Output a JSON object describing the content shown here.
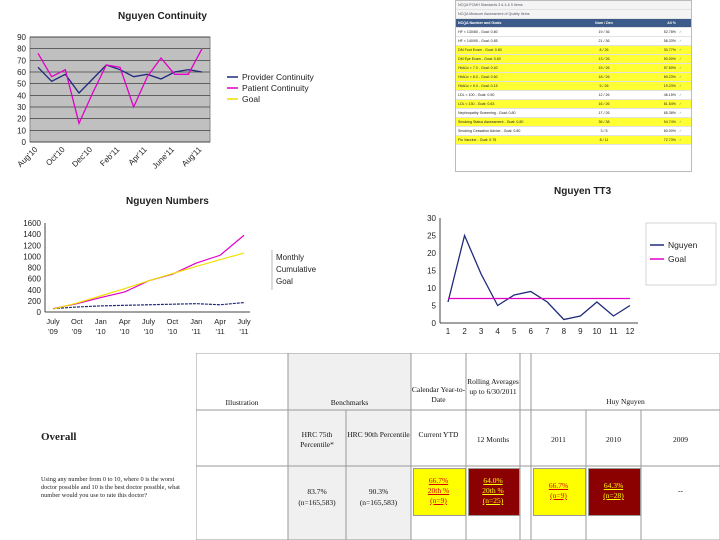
{
  "chart_data": [
    {
      "type": "line",
      "title": "Nguyen Continuity",
      "categories": [
        "Aug '10",
        "Sep '10",
        "Oct '10",
        "Nov '10",
        "Dec '10",
        "Jan '11",
        "Feb '11",
        "Mar '11",
        "Apr '11",
        "May '11",
        "June '11",
        "July '11",
        "Aug '11"
      ],
      "tick_labels": [
        "Aug'10",
        "Oct'10",
        "Dec'10",
        "Feb'11",
        "Apr'11",
        "June'11",
        "Aug'11"
      ],
      "ylim": [
        0,
        90
      ],
      "yticks": [
        0,
        10,
        20,
        30,
        40,
        50,
        60,
        70,
        80,
        90
      ],
      "series": [
        {
          "name": "Provider Continuity",
          "color": "#1f2a7a",
          "values": [
            64,
            52,
            58,
            42,
            54,
            66,
            62,
            56,
            58,
            54,
            60,
            62,
            60
          ]
        },
        {
          "name": "Patient Continuity",
          "color": "#e000c8",
          "values": [
            76,
            56,
            62,
            16,
            42,
            66,
            64,
            30,
            56,
            72,
            58,
            58,
            80
          ]
        },
        {
          "name": "Goal",
          "color": "#f0e000",
          "values": [
            null,
            null,
            null,
            null,
            null,
            null,
            null,
            null,
            null,
            null,
            null,
            null,
            null
          ]
        }
      ],
      "legend": [
        "Provider Continuity",
        "Patient Continuity",
        "Goal"
      ]
    },
    {
      "type": "line",
      "title": "Nguyen Numbers",
      "categories": [
        "July '09",
        "Oct '09",
        "Jan '10",
        "Apr '10",
        "July '10",
        "Oct '10",
        "Jan '11",
        "Apr '11",
        "July '11"
      ],
      "tick_labels_top": [
        "July",
        "Oct",
        "Jan",
        "Apr",
        "July",
        "Oct",
        "Jan",
        "Apr",
        "July"
      ],
      "tick_labels_bottom": [
        "'09",
        "'09",
        "'10",
        "'10",
        "'10",
        "'10",
        "'11",
        "'11",
        "'11"
      ],
      "ylim": [
        0,
        1600
      ],
      "yticks": [
        0,
        200,
        400,
        600,
        800,
        1000,
        1200,
        1400,
        1600
      ],
      "series": [
        {
          "name": "Monthly",
          "color": "#1f2a7a",
          "values": [
            60,
            90,
            110,
            120,
            130,
            140,
            150,
            130,
            170
          ]
        },
        {
          "name": "Cumulative",
          "color": "#e000c8",
          "values": [
            60,
            150,
            260,
            360,
            560,
            680,
            880,
            1020,
            1380
          ]
        },
        {
          "name": "Goal",
          "color": "#f0e000",
          "values": [
            50,
            160,
            290,
            420,
            560,
            690,
            820,
            940,
            1060
          ]
        }
      ],
      "legend": [
        "Monthly",
        "Cumulative",
        "Goal"
      ]
    },
    {
      "type": "line",
      "title": "Nguyen TT3",
      "categories": [
        "1",
        "2",
        "3",
        "4",
        "5",
        "6",
        "7",
        "8",
        "9",
        "10",
        "11",
        "12"
      ],
      "ylim": [
        0,
        30
      ],
      "yticks": [
        0,
        5,
        10,
        15,
        20,
        25,
        30
      ],
      "series": [
        {
          "name": "Nguyen",
          "color": "#1f2a7a",
          "values": [
            6,
            25,
            14,
            5,
            8,
            9,
            6,
            1,
            2,
            6,
            2,
            5
          ]
        },
        {
          "name": "Goal",
          "color": "#e000c8",
          "values": [
            7,
            7,
            7,
            7,
            7,
            7,
            7,
            7,
            7,
            7,
            7,
            7
          ]
        }
      ],
      "legend": [
        "Nguyen",
        "Goal"
      ]
    }
  ],
  "mini_table": {
    "top_rows": [
      "NCQA PCMH Standards 3 & 4 & 5 Items",
      "NCQA Measure Assessment of Quality Items"
    ],
    "header": [
      "NCQA Number and Goals",
      "Num / Den",
      "All %",
      ""
    ],
    "rows": [
      {
        "name": "HF < 130/80 - Goal: 0.80",
        "num": "19 / 36",
        "pct": "52.78%",
        "flag": "✓",
        "yellow": false
      },
      {
        "name": "HF < 140/90 - Goal: 0.85",
        "num": "21 / 36",
        "pct": "58.33%",
        "flag": "✓",
        "yellow": false
      },
      {
        "name": "DM Foot Exam - Goal: 0.80",
        "num": "8 / 26",
        "pct": "30.77%",
        "flag": "✓",
        "yellow": true
      },
      {
        "name": "DM Eye Exam - Goal: 0.60",
        "num": "13 / 26",
        "pct": "50.00%",
        "flag": "✓",
        "yellow": true
      },
      {
        "name": "HbA1c < 7.0 - Goal: 0.40",
        "num": "15 / 26",
        "pct": "57.69%",
        "flag": "✓",
        "yellow": true
      },
      {
        "name": "HbA1c < 8.0 - Goal: 0.60",
        "num": "18 / 26",
        "pct": "69.23%",
        "flag": "✓",
        "yellow": true
      },
      {
        "name": "HbA1c > 9.0 - Goal: 0.15",
        "num": "5 / 26",
        "pct": "19.23%",
        "flag": "✓",
        "yellow": true
      },
      {
        "name": "LDL < 100 - Goal: 0.50",
        "num": "12 / 26",
        "pct": "46.15%",
        "flag": "✓",
        "yellow": false
      },
      {
        "name": "LDL < 130 - Goal: 0.63",
        "num": "16 / 26",
        "pct": "61.54%",
        "flag": "✓",
        "yellow": true
      },
      {
        "name": "Nephropathy Screening - Goal: 0.80",
        "num": "17 / 26",
        "pct": "65.38%",
        "flag": "✓",
        "yellow": false
      },
      {
        "name": "Smoking Status Assessment - Goal: 0.80",
        "num": "36 / 38",
        "pct": "94.74%",
        "flag": "✓",
        "yellow": true
      },
      {
        "name": "Smoking Cessation Advice - Goal: 0.80",
        "num": "3 / 5",
        "pct": "60.00%",
        "flag": "✓",
        "yellow": false
      },
      {
        "name": "Flu Vaccine - Goal: 0.75",
        "num": "8 / 11",
        "pct": "72.73%",
        "flag": "✓",
        "yellow": true
      }
    ]
  },
  "metrics": {
    "headers": {
      "illustration": "Illustration",
      "benchmarks": "Benchmarks",
      "calendar": "Calendar Year-to-Date",
      "rolling": "Rolling Averages up to 6/30/2011",
      "provider": "Huy Nguyen"
    },
    "subheaders": {
      "b1": "HRC 75th Percentile*",
      "b2": "HRC 90th Percentile",
      "cal": "Current YTD",
      "roll": "12 Months",
      "y1": "2011",
      "y2": "2010",
      "y3": "2009"
    },
    "overall_label": "Overall",
    "question": "Using any number from 0 to 10, where 0 is the worst doctor possible and 10 is the best doctor possible, what number would you use to rate this doctor?",
    "values": {
      "b1": "83.7%",
      "b1_n": "(n=165,583)",
      "b2": "90.3%",
      "b2_n": "(n=165,583)",
      "cal_pct": "66.7%",
      "cal_rank": "20th %",
      "cal_n": "(n=9)",
      "roll_pct": "64.0%",
      "roll_rank": "20th %",
      "roll_n": "(n=25)",
      "y1_pct": "66.7%",
      "y1_n": "(n=9)",
      "y2_pct": "64.3%",
      "y2_n": "(n=28)",
      "y3": "--"
    }
  }
}
